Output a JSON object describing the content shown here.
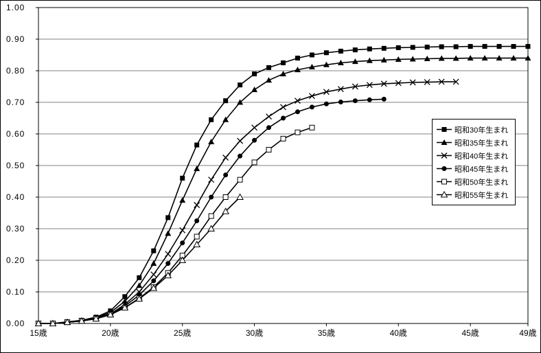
{
  "chart_data": {
    "type": "line",
    "title": "",
    "xlabel": "",
    "ylabel": "",
    "age_min": 15,
    "age_max": 49,
    "ylim": [
      0,
      1
    ],
    "grid": "horizontal-major",
    "legend_position": "middle-right",
    "colors": {
      "line": "#000000",
      "grid": "#808080",
      "axis": "#000000",
      "background": "#ffffff"
    },
    "y_tick_labels": [
      "0.00",
      "0.10",
      "0.20",
      "0.30",
      "0.40",
      "0.50",
      "0.60",
      "0.70",
      "0.80",
      "0.90",
      "1.00"
    ],
    "x_ticks": [
      {
        "age": 15,
        "label": "15歳"
      },
      {
        "age": 20,
        "label": "20歳"
      },
      {
        "age": 25,
        "label": "25歳"
      },
      {
        "age": 30,
        "label": "30歳"
      },
      {
        "age": 35,
        "label": "35歳"
      },
      {
        "age": 40,
        "label": "40歳"
      },
      {
        "age": 45,
        "label": "45歳"
      },
      {
        "age": 49,
        "label": "49歳"
      }
    ],
    "series": [
      {
        "name": "昭和30年生まれ",
        "marker": "filled-square",
        "start_age": 15,
        "values": [
          0,
          0,
          0.005,
          0.01,
          0.02,
          0.04,
          0.085,
          0.145,
          0.23,
          0.335,
          0.46,
          0.565,
          0.645,
          0.705,
          0.755,
          0.79,
          0.81,
          0.825,
          0.84,
          0.85,
          0.857,
          0.862,
          0.866,
          0.869,
          0.871,
          0.873,
          0.874,
          0.875,
          0.876,
          0.876,
          0.877,
          0.877,
          0.877,
          0.877,
          0.877
        ]
      },
      {
        "name": "昭和35年生まれ",
        "marker": "filled-triangle",
        "start_age": 15,
        "values": [
          0,
          0,
          0.004,
          0.008,
          0.018,
          0.035,
          0.07,
          0.12,
          0.19,
          0.285,
          0.39,
          0.49,
          0.575,
          0.645,
          0.7,
          0.74,
          0.77,
          0.79,
          0.803,
          0.812,
          0.819,
          0.825,
          0.829,
          0.832,
          0.834,
          0.836,
          0.837,
          0.838,
          0.839,
          0.839,
          0.84,
          0.84,
          0.84,
          0.84,
          0.84
        ]
      },
      {
        "name": "昭和40年生まれ",
        "marker": "cross",
        "start_age": 15,
        "values": [
          0,
          0,
          0.004,
          0.008,
          0.016,
          0.03,
          0.06,
          0.1,
          0.155,
          0.22,
          0.295,
          0.375,
          0.455,
          0.525,
          0.578,
          0.62,
          0.655,
          0.685,
          0.705,
          0.72,
          0.733,
          0.742,
          0.75,
          0.755,
          0.759,
          0.761,
          0.763,
          0.764,
          0.765,
          0.765
        ]
      },
      {
        "name": "昭和45年生まれ",
        "marker": "filled-circle",
        "start_age": 15,
        "values": [
          0,
          0,
          0.004,
          0.008,
          0.015,
          0.03,
          0.055,
          0.09,
          0.135,
          0.19,
          0.255,
          0.325,
          0.4,
          0.47,
          0.53,
          0.58,
          0.62,
          0.65,
          0.67,
          0.685,
          0.695,
          0.701,
          0.705,
          0.708,
          0.71
        ]
      },
      {
        "name": "昭和50年生まれ",
        "marker": "open-square",
        "start_age": 15,
        "values": [
          0,
          0,
          0.004,
          0.008,
          0.015,
          0.028,
          0.05,
          0.08,
          0.115,
          0.16,
          0.215,
          0.275,
          0.34,
          0.4,
          0.455,
          0.51,
          0.55,
          0.585,
          0.605,
          0.62
        ]
      },
      {
        "name": "昭和55年生まれ",
        "marker": "open-triangle",
        "start_age": 15,
        "values": [
          0,
          0,
          0.004,
          0.008,
          0.015,
          0.028,
          0.05,
          0.078,
          0.112,
          0.152,
          0.2,
          0.25,
          0.3,
          0.355,
          0.4
        ]
      }
    ]
  }
}
